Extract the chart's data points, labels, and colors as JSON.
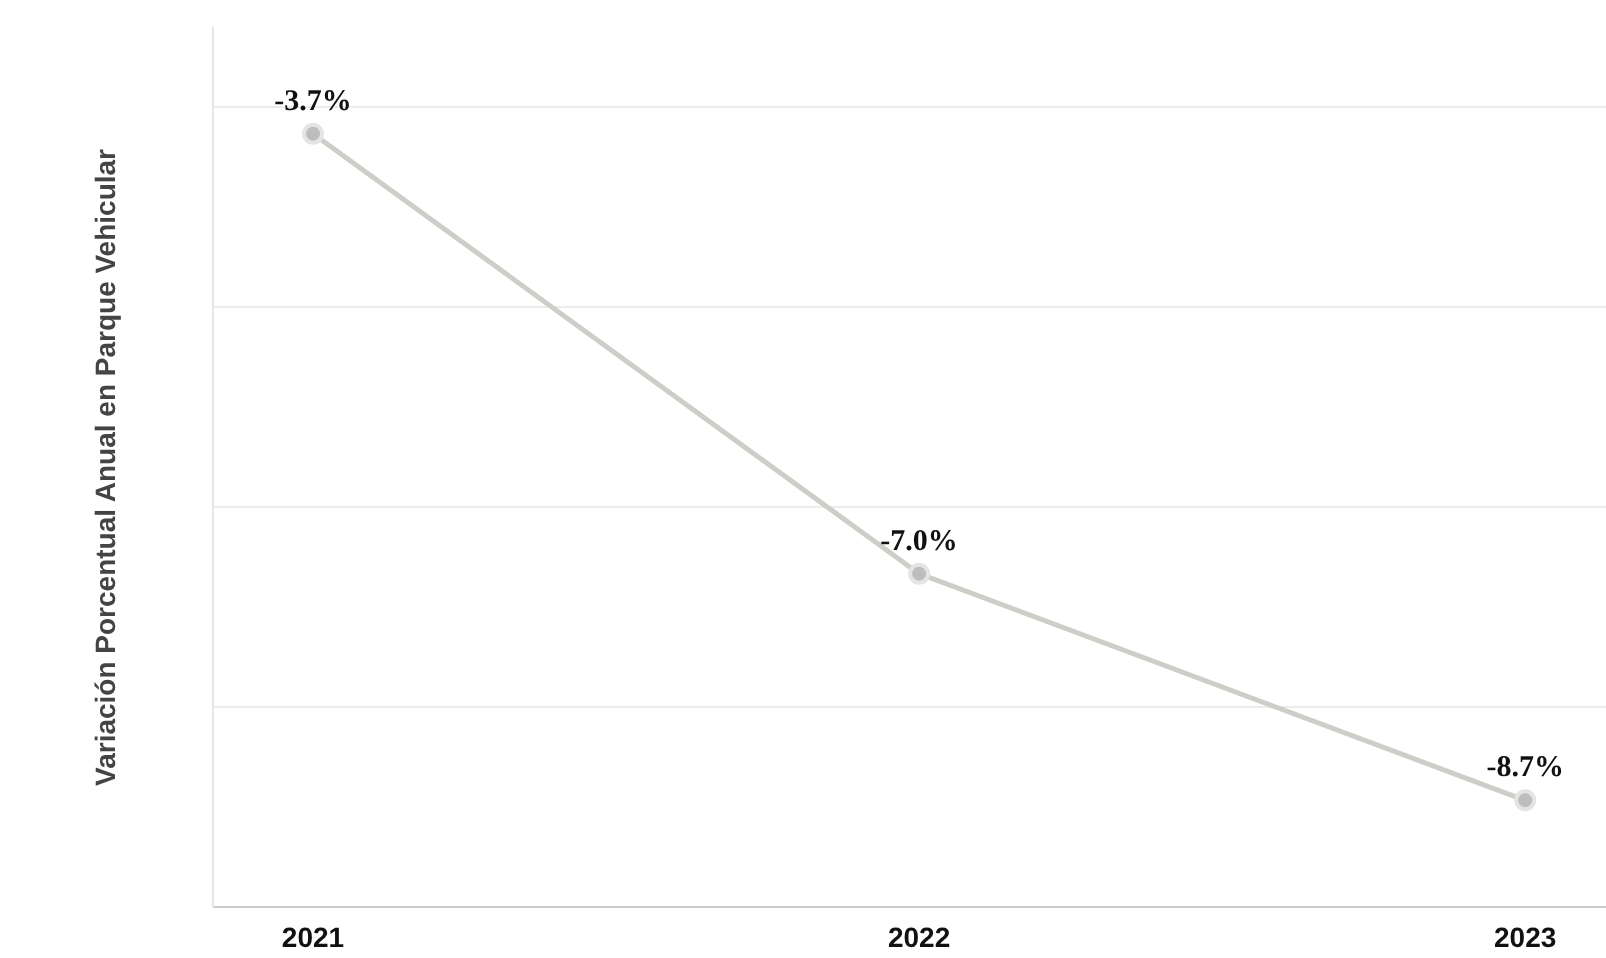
{
  "chart_data": {
    "type": "line",
    "ylabel": "Variación Porcentual Anual en Parque Vehicular",
    "categories": [
      "2021",
      "2022",
      "2023"
    ],
    "series": [
      {
        "color": "#cfcdc8",
        "values": [
          -3.7,
          -7.0,
          -8.7
        ],
        "value_labels": [
          "-3.7%",
          "-7.0%",
          "-8.7%"
        ]
      }
    ],
    "ylim": [
      -9.5,
      -2.9
    ],
    "yticks": [
      {
        "value": -8.0,
        "label": null
      },
      {
        "value": -6.5,
        "label": null
      },
      {
        "value": -5.0,
        "label": null
      },
      {
        "value": -3.5,
        "label": null
      }
    ],
    "tick_labels": "x",
    "grid": "y",
    "marker": "circle",
    "line_style": "solid"
  }
}
